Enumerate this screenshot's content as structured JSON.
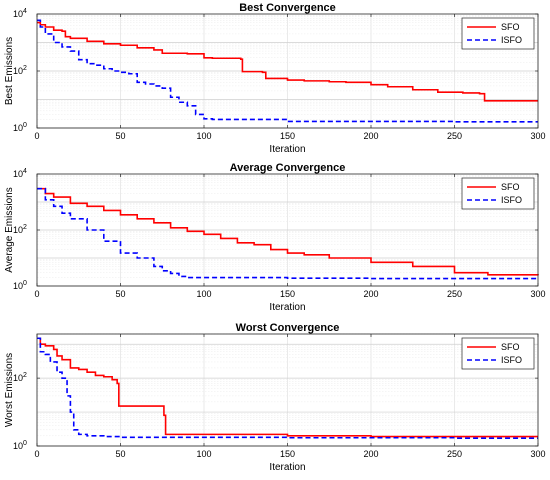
{
  "chart_data": [
    {
      "type": "line",
      "title": "Best Convergence",
      "xlabel": "Iteration",
      "ylabel": "Best Emissions",
      "xlim": [
        0,
        300
      ],
      "ylim": [
        1,
        10000
      ],
      "yscale": "log",
      "xticks": [
        0,
        50,
        100,
        150,
        200,
        250,
        300
      ],
      "yticks": [
        1,
        100,
        10000
      ],
      "yticklabels": [
        "10^0",
        "10^2",
        "10^4"
      ],
      "grid": true,
      "legend_position": "top-right",
      "series": [
        {
          "name": "SFO",
          "color": "#ff0000",
          "style": "solid",
          "x": [
            0,
            2,
            5,
            10,
            15,
            17,
            20,
            30,
            40,
            50,
            60,
            70,
            75,
            90,
            100,
            105,
            115,
            122,
            123,
            135,
            137,
            150,
            160,
            175,
            185,
            200,
            210,
            225,
            240,
            255,
            265,
            268,
            300
          ],
          "y": [
            5000,
            4200,
            3500,
            2700,
            2500,
            1600,
            1400,
            1100,
            900,
            800,
            650,
            550,
            420,
            400,
            290,
            280,
            280,
            260,
            95,
            90,
            55,
            48,
            45,
            42,
            40,
            33,
            28,
            22,
            18,
            17,
            16,
            9,
            9
          ]
        },
        {
          "name": "ISFO",
          "color": "#0000ff",
          "style": "dashed",
          "x": [
            0,
            2,
            5,
            10,
            15,
            20,
            25,
            30,
            35,
            40,
            45,
            50,
            55,
            60,
            65,
            70,
            75,
            80,
            85,
            90,
            95,
            100,
            105,
            150,
            200,
            250,
            300
          ],
          "y": [
            6000,
            3500,
            2000,
            1000,
            700,
            500,
            250,
            180,
            160,
            120,
            100,
            90,
            80,
            40,
            35,
            30,
            25,
            12,
            8,
            6,
            3,
            2.1,
            2.0,
            1.7,
            1.7,
            1.65,
            1.65
          ]
        }
      ]
    },
    {
      "type": "line",
      "title": "Average Convergence",
      "xlabel": "Iteration",
      "ylabel": "Average Emissions",
      "xlim": [
        0,
        300
      ],
      "ylim": [
        1,
        10000
      ],
      "yscale": "log",
      "xticks": [
        0,
        50,
        100,
        150,
        200,
        250,
        300
      ],
      "yticks": [
        1,
        100,
        10000
      ],
      "yticklabels": [
        "10^0",
        "10^2",
        "10^4"
      ],
      "grid": true,
      "legend_position": "top-right",
      "series": [
        {
          "name": "SFO",
          "color": "#ff0000",
          "style": "solid",
          "x": [
            0,
            5,
            10,
            20,
            30,
            40,
            50,
            60,
            70,
            80,
            90,
            100,
            110,
            120,
            130,
            140,
            150,
            160,
            175,
            200,
            225,
            250,
            270,
            300
          ],
          "y": [
            3000,
            2000,
            1500,
            900,
            700,
            500,
            350,
            250,
            180,
            120,
            90,
            70,
            50,
            35,
            30,
            20,
            15,
            13,
            10,
            7,
            5,
            3,
            2.5,
            2.4
          ]
        },
        {
          "name": "ISFO",
          "color": "#0000ff",
          "style": "dashed",
          "x": [
            0,
            5,
            10,
            15,
            20,
            30,
            40,
            50,
            60,
            70,
            75,
            80,
            85,
            90,
            100,
            150,
            200,
            250,
            300
          ],
          "y": [
            3000,
            1200,
            700,
            400,
            250,
            100,
            40,
            15,
            10,
            5,
            3.5,
            2.8,
            2.2,
            2.0,
            2.0,
            1.9,
            1.85,
            1.85,
            1.8
          ]
        }
      ]
    },
    {
      "type": "line",
      "title": "Worst Convergence",
      "xlabel": "Iteration",
      "ylabel": "Worst Emissions",
      "xlim": [
        0,
        300
      ],
      "ylim": [
        1,
        2000
      ],
      "yscale": "log",
      "xticks": [
        0,
        50,
        100,
        150,
        200,
        250,
        300
      ],
      "yticks": [
        1,
        100
      ],
      "yticklabels": [
        "10^0",
        "10^2"
      ],
      "grid": true,
      "legend_position": "top-right",
      "series": [
        {
          "name": "SFO",
          "color": "#ff0000",
          "style": "solid",
          "x": [
            0,
            2,
            5,
            10,
            12,
            15,
            20,
            25,
            30,
            35,
            40,
            45,
            48,
            49,
            60,
            70,
            75,
            76,
            77,
            100,
            150,
            200,
            250,
            300
          ],
          "y": [
            1500,
            1000,
            900,
            700,
            450,
            350,
            200,
            180,
            150,
            120,
            110,
            90,
            70,
            15,
            15,
            15,
            15,
            8,
            2.2,
            2.2,
            2.0,
            1.9,
            1.9,
            1.9
          ]
        },
        {
          "name": "ISFO",
          "color": "#0000ff",
          "style": "dashed",
          "x": [
            0,
            2,
            5,
            8,
            12,
            15,
            18,
            20,
            22,
            25,
            30,
            40,
            50,
            100,
            150,
            200,
            250,
            300
          ],
          "y": [
            1500,
            600,
            500,
            300,
            150,
            100,
            30,
            10,
            3.0,
            2.2,
            2.0,
            1.9,
            1.8,
            1.8,
            1.75,
            1.75,
            1.7,
            1.7
          ]
        }
      ]
    }
  ]
}
